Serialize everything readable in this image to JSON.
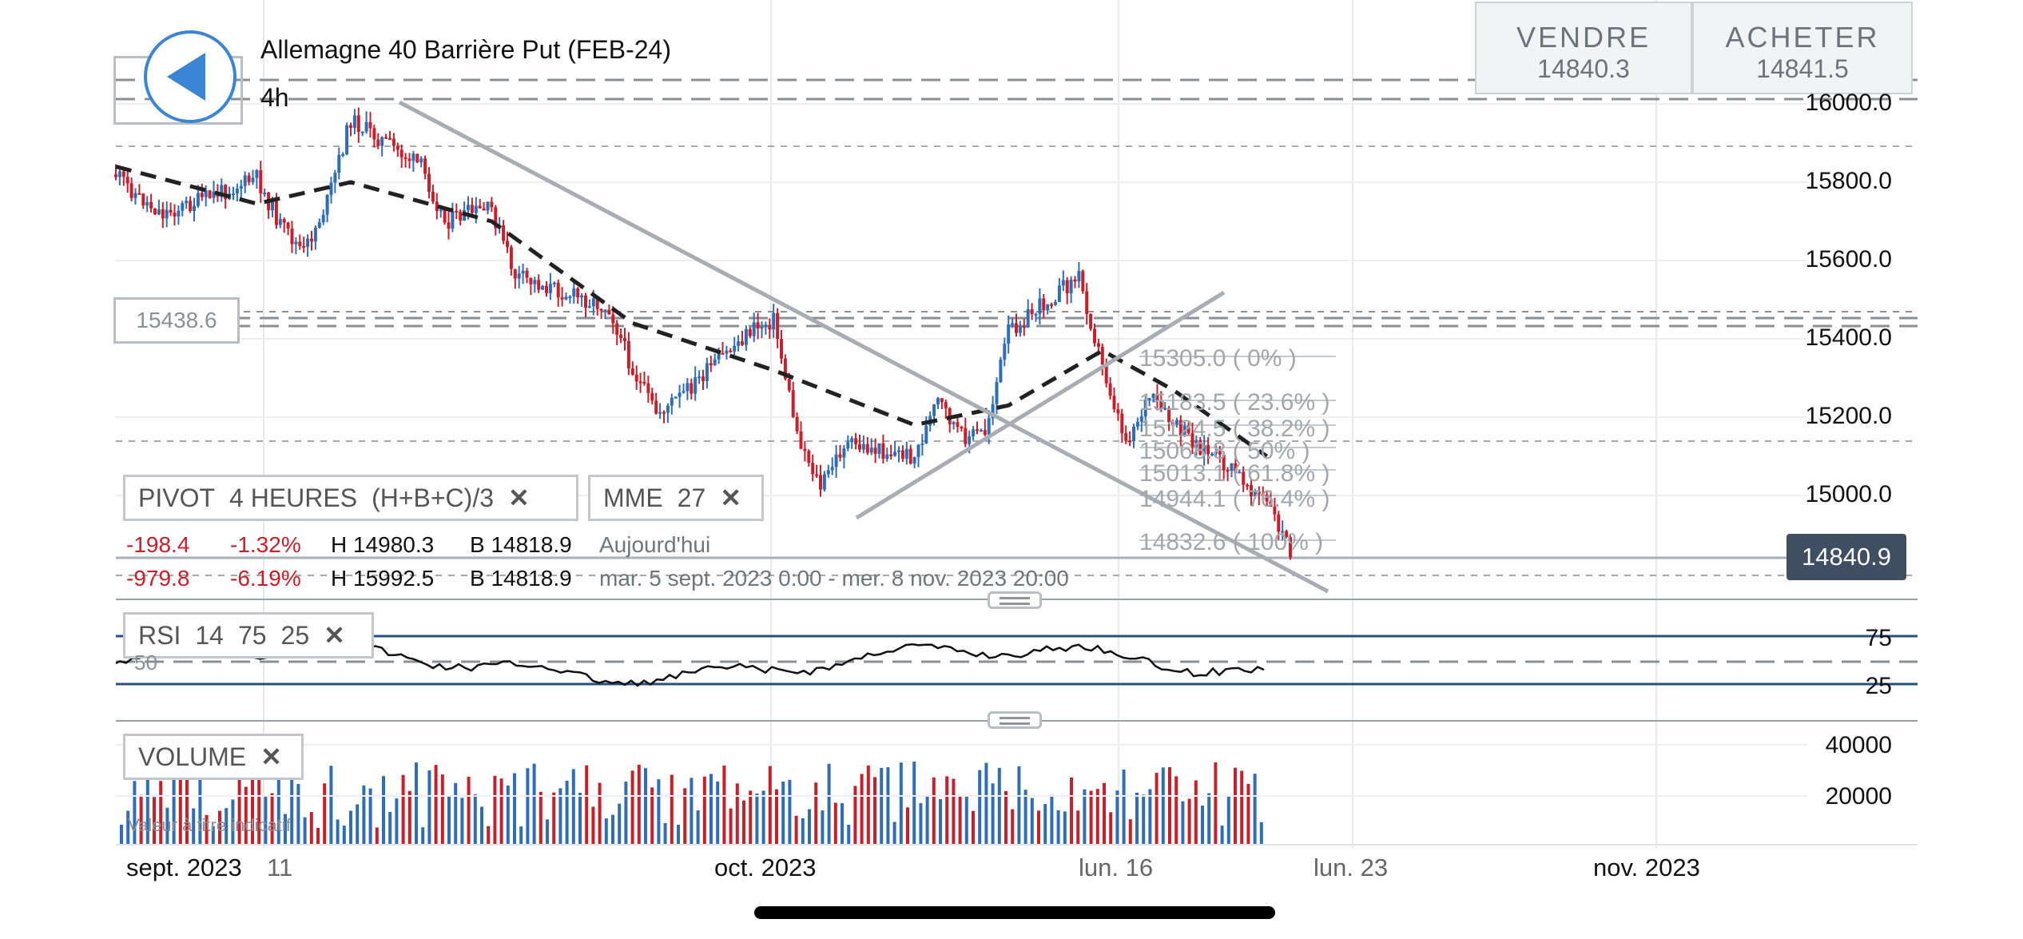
{
  "header": {
    "title": "Allemagne 40 Barrière Put (FEB-24)",
    "timeframe": "4h",
    "sell_label": "VENDRE",
    "sell_price": "14840.3",
    "buy_label": "ACHETER",
    "buy_price": "14841.5"
  },
  "current_price": "14840.9",
  "price_level_box": "15438.6",
  "pivot": {
    "title": "PIVOT",
    "period": "4 HEURES",
    "formula": "(H+B+C)/3",
    "close": "✕",
    "row1": {
      "change": "-198.4",
      "pct": "-1.32%",
      "high": "H 14980.3",
      "low": "B 14818.9",
      "period_label": "Aujourd'hui"
    },
    "row2": {
      "change": "-979.8",
      "pct": "-6.19%",
      "high": "H 15992.5",
      "low": "B 14818.9",
      "period_label": "mar. 5 sept. 2023 0:00 - mer. 8 nov. 2023 20:00"
    }
  },
  "mme": {
    "title": "MME",
    "period": "27",
    "close": "✕"
  },
  "rsi": {
    "title": "RSI",
    "p1": "14",
    "p2": "75",
    "p3": "25",
    "close": "✕",
    "mid_label": "50"
  },
  "volume": {
    "title": "VOLUME",
    "close": "✕",
    "note": "Valeur à titre indicatif"
  },
  "fib_levels": [
    {
      "label": "15305.0 ( 0% )"
    },
    {
      "label": "15183.5 ( 23.6% )"
    },
    {
      "label": "15124.5 ( 38.2% )"
    },
    {
      "label": "15068.8 ( 50% )"
    },
    {
      "label": "15013.1 ( 61.8% )"
    },
    {
      "label": "14944.1 ( 76.4% )"
    },
    {
      "label": "14832.6 ( 100% )"
    }
  ],
  "colors": {
    "up": "#2f6eb7",
    "down": "#c8202a",
    "accent": "#3a86d4",
    "price_tag": "#3f4e62",
    "trendline": "#a8acb3"
  },
  "chart_data": [
    {
      "type": "candlestick",
      "title": "Allemagne 40 Barrière Put (FEB-24)",
      "ylim": [
        14750,
        16100
      ],
      "y_ticks": [
        "16000.0",
        "15800.0",
        "15600.0",
        "15400.0",
        "15200.0",
        "15000.0"
      ],
      "x_ticks": [
        "sept. 2023",
        "11",
        "oct. 2023",
        "lun. 16",
        "lun. 23",
        "nov. 2023"
      ],
      "close_path": [
        {
          "x": "2023-09-05 00:00",
          "y": 15820
        },
        {
          "x": "2023-09-06 00:00",
          "y": 15760
        },
        {
          "x": "2023-09-07 00:00",
          "y": 15720
        },
        {
          "x": "2023-09-08 00:00",
          "y": 15740
        },
        {
          "x": "2023-09-11 00:00",
          "y": 15810
        },
        {
          "x": "2023-09-12 00:00",
          "y": 15690
        },
        {
          "x": "2023-09-13 00:00",
          "y": 15620
        },
        {
          "x": "2023-09-14 00:00",
          "y": 15750
        },
        {
          "x": "2023-09-15 00:00",
          "y": 15960
        },
        {
          "x": "2023-09-18 00:00",
          "y": 15840
        },
        {
          "x": "2023-09-19 00:00",
          "y": 15700
        },
        {
          "x": "2023-09-20 00:00",
          "y": 15720
        },
        {
          "x": "2023-09-21 00:00",
          "y": 15730
        },
        {
          "x": "2023-09-22 00:00",
          "y": 15560
        },
        {
          "x": "2023-09-25 00:00",
          "y": 15500
        },
        {
          "x": "2023-09-26 00:00",
          "y": 15480
        },
        {
          "x": "2023-09-27 00:00",
          "y": 15320
        },
        {
          "x": "2023-09-28 00:00",
          "y": 15210
        },
        {
          "x": "2023-09-29 00:00",
          "y": 15250
        },
        {
          "x": "2023-10-02 00:00",
          "y": 15420
        },
        {
          "x": "2023-10-03 00:00",
          "y": 15450
        },
        {
          "x": "2023-10-04 00:00",
          "y": 15160
        },
        {
          "x": "2023-10-05 00:00",
          "y": 15020
        },
        {
          "x": "2023-10-06 00:00",
          "y": 15130
        },
        {
          "x": "2023-10-09 00:00",
          "y": 15100
        },
        {
          "x": "2023-10-10 00:00",
          "y": 15240
        },
        {
          "x": "2023-10-11 00:00",
          "y": 15150
        },
        {
          "x": "2023-10-12 00:00",
          "y": 15160
        },
        {
          "x": "2023-10-13 00:00",
          "y": 15420
        },
        {
          "x": "2023-10-16 00:00",
          "y": 15560
        },
        {
          "x": "2023-10-17 00:00",
          "y": 15330
        },
        {
          "x": "2023-10-18 00:00",
          "y": 15140
        },
        {
          "x": "2023-10-19 00:00",
          "y": 15250
        },
        {
          "x": "2023-10-20 00:00",
          "y": 15180
        },
        {
          "x": "2023-10-23 00:00",
          "y": 15040
        },
        {
          "x": "2023-10-24 00:00",
          "y": 14980
        },
        {
          "x": "2023-10-25 04:00",
          "y": 14840.9
        }
      ],
      "mme_27": [
        {
          "x": "2023-09-05 00:00",
          "y": 15840
        },
        {
          "x": "2023-09-11 00:00",
          "y": 15745
        },
        {
          "x": "2023-09-15 00:00",
          "y": 15800
        },
        {
          "x": "2023-09-21 00:00",
          "y": 15700
        },
        {
          "x": "2023-09-27 00:00",
          "y": 15440
        },
        {
          "x": "2023-10-03 00:00",
          "y": 15320
        },
        {
          "x": "2023-10-09 00:00",
          "y": 15180
        },
        {
          "x": "2023-10-13 00:00",
          "y": 15230
        },
        {
          "x": "2023-10-17 00:00",
          "y": 15370
        },
        {
          "x": "2023-10-20 00:00",
          "y": 15270
        },
        {
          "x": "2023-10-24 00:00",
          "y": 15100
        }
      ]
    },
    {
      "type": "line",
      "title": "RSI",
      "ylim": [
        0,
        100
      ],
      "y_ticks": [
        "75",
        "25"
      ],
      "levels": [
        25,
        50,
        75
      ]
    },
    {
      "type": "bar",
      "title": "VOLUME",
      "y_ticks": [
        "40000",
        "20000"
      ]
    }
  ]
}
